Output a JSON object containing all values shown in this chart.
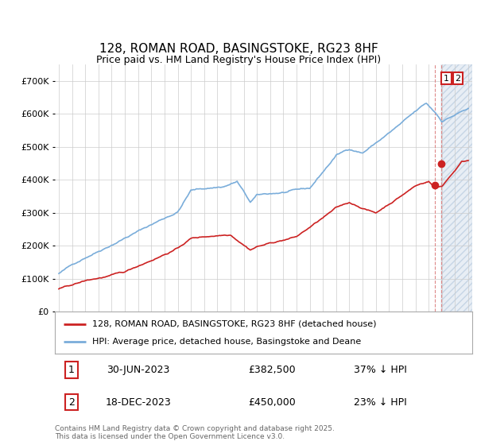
{
  "title": "128, ROMAN ROAD, BASINGSTOKE, RG23 8HF",
  "subtitle": "Price paid vs. HM Land Registry's House Price Index (HPI)",
  "ylim": [
    0,
    750000
  ],
  "xlim_start": 1994.7,
  "xlim_end": 2026.3,
  "hpi_color": "#7aadda",
  "price_color": "#cc2222",
  "marker_color": "#cc2222",
  "vline1_color": "#dd8888",
  "vline2_color": "#dd8888",
  "shade_color": "#e8eef5",
  "annotation_box_color": "#cc2222",
  "legend_line1": "128, ROMAN ROAD, BASINGSTOKE, RG23 8HF (detached house)",
  "legend_line2": "HPI: Average price, detached house, Basingstoke and Deane",
  "table_row1_num": "1",
  "table_row1_date": "30-JUN-2023",
  "table_row1_price": "£382,500",
  "table_row1_hpi": "37% ↓ HPI",
  "table_row2_num": "2",
  "table_row2_date": "18-DEC-2023",
  "table_row2_price": "£450,000",
  "table_row2_hpi": "23% ↓ HPI",
  "footer": "Contains HM Land Registry data © Crown copyright and database right 2025.\nThis data is licensed under the Open Government Licence v3.0.",
  "sale1_x": 2023.5,
  "sale1_y": 382500,
  "sale2_x": 2023.96,
  "sale2_y": 450000,
  "shade_start": 2023.96,
  "background_color": "#ffffff",
  "plot_bg_color": "#ffffff",
  "grid_color": "#cccccc"
}
